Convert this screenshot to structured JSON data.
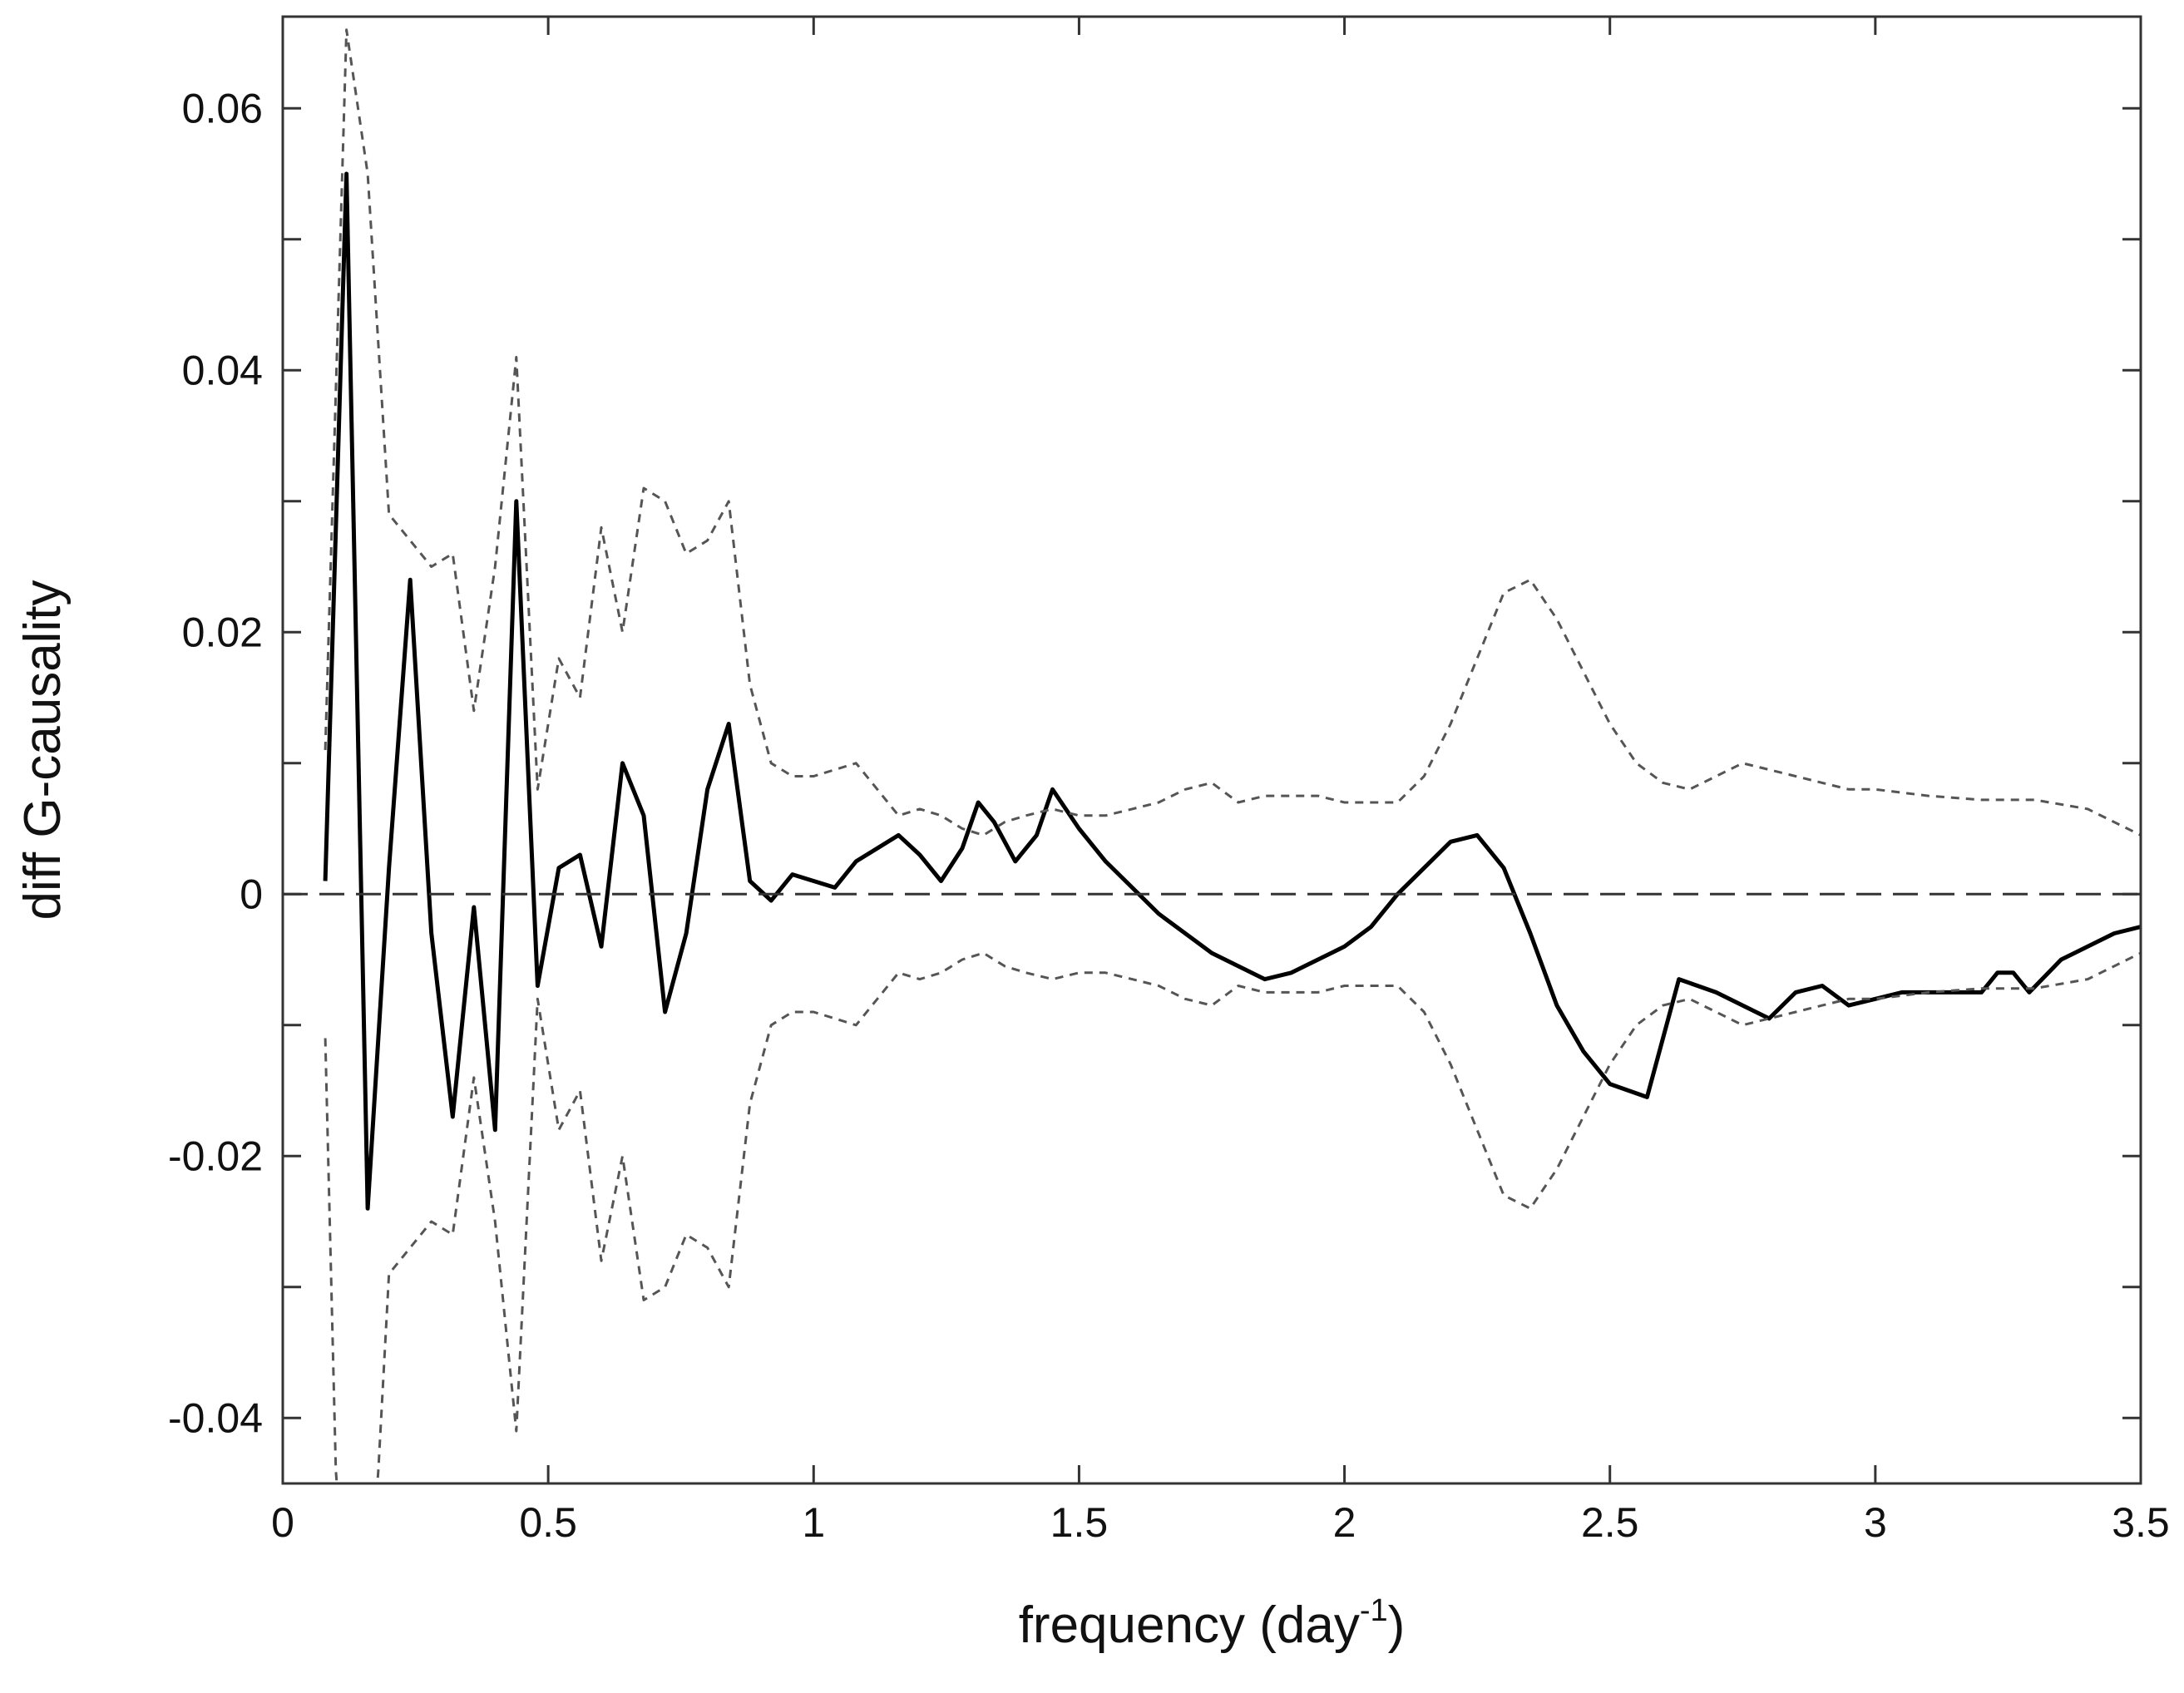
{
  "chart_data": {
    "type": "line",
    "xlabel_main": "frequency (day",
    "xlabel_sup": "-1",
    "xlabel_end": ")",
    "ylabel": "diff G-causality",
    "xlim": [
      0,
      3.5
    ],
    "ylim": [
      -0.045,
      0.067
    ],
    "xticks": [
      0,
      0.5,
      1,
      1.5,
      2,
      2.5,
      3,
      3.5
    ],
    "xtick_labels": [
      "0",
      "0.5",
      "1",
      "1.5",
      "2",
      "2.5",
      "3",
      "3.5"
    ],
    "yticks": [
      -0.04,
      -0.02,
      0,
      0.02,
      0.04,
      0.06
    ],
    "ytick_labels": [
      "-0.04",
      "-0.02",
      "0",
      "0.02",
      "0.04",
      "0.06"
    ],
    "grid": false,
    "zero_line": true,
    "colors": {
      "main": "#000000",
      "bounds": "#555555",
      "zero": "#333333",
      "axes": "#333333"
    },
    "series": [
      {
        "style": "solid",
        "x": [
          0.08,
          0.12,
          0.16,
          0.2,
          0.24,
          0.28,
          0.32,
          0.36,
          0.4,
          0.44,
          0.48,
          0.52,
          0.56,
          0.6,
          0.64,
          0.68,
          0.72,
          0.76,
          0.8,
          0.84,
          0.88,
          0.92,
          0.96,
          1.0,
          1.04,
          1.08,
          1.12,
          1.16,
          1.2,
          1.24,
          1.28,
          1.31,
          1.34,
          1.38,
          1.42,
          1.45,
          1.5,
          1.55,
          1.6,
          1.65,
          1.7,
          1.75,
          1.8,
          1.85,
          1.9,
          1.95,
          2.0,
          2.05,
          2.1,
          2.15,
          2.2,
          2.25,
          2.3,
          2.35,
          2.4,
          2.45,
          2.5,
          2.57,
          2.63,
          2.7,
          2.75,
          2.8,
          2.85,
          2.9,
          2.95,
          3.0,
          3.05,
          3.1,
          3.15,
          3.2,
          3.23,
          3.26,
          3.29,
          3.35,
          3.4,
          3.45,
          3.5
        ],
        "values": [
          0.001,
          0.055,
          -0.024,
          0.002,
          0.024,
          -0.003,
          -0.017,
          -0.001,
          -0.018,
          0.03,
          -0.007,
          0.002,
          0.003,
          -0.004,
          0.01,
          0.006,
          -0.009,
          -0.003,
          0.008,
          0.013,
          0.001,
          -0.0005,
          0.0015,
          0.001,
          0.0005,
          0.0025,
          0.0035,
          0.0045,
          0.003,
          0.001,
          0.0035,
          0.007,
          0.0055,
          0.0025,
          0.0045,
          0.008,
          0.005,
          0.0025,
          0.0005,
          -0.0015,
          -0.003,
          -0.0045,
          -0.0055,
          -0.0065,
          -0.006,
          -0.005,
          -0.004,
          -0.0025,
          0.0,
          0.002,
          0.004,
          0.0045,
          0.002,
          -0.003,
          -0.0085,
          -0.012,
          -0.0145,
          -0.0155,
          -0.0065,
          -0.0075,
          -0.0085,
          -0.0095,
          -0.0075,
          -0.007,
          -0.0085,
          -0.008,
          -0.0075,
          -0.0075,
          -0.0075,
          -0.0075,
          -0.006,
          -0.006,
          -0.0075,
          -0.005,
          -0.004,
          -0.003,
          -0.0025
        ]
      },
      {
        "style": "dashed",
        "x": [
          0.08,
          0.12,
          0.16,
          0.2,
          0.24,
          0.28,
          0.32,
          0.36,
          0.4,
          0.44,
          0.48,
          0.52,
          0.56,
          0.6,
          0.64,
          0.68,
          0.72,
          0.76,
          0.8,
          0.84,
          0.88,
          0.92,
          0.96,
          1.0,
          1.04,
          1.08,
          1.12,
          1.16,
          1.2,
          1.24,
          1.28,
          1.32,
          1.36,
          1.4,
          1.45,
          1.5,
          1.55,
          1.6,
          1.65,
          1.7,
          1.75,
          1.8,
          1.85,
          1.9,
          1.95,
          2.0,
          2.05,
          2.1,
          2.15,
          2.2,
          2.25,
          2.3,
          2.35,
          2.4,
          2.45,
          2.5,
          2.55,
          2.6,
          2.65,
          2.7,
          2.75,
          2.8,
          2.85,
          2.9,
          2.95,
          3.0,
          3.1,
          3.2,
          3.3,
          3.4,
          3.5
        ],
        "values": [
          0.011,
          0.066,
          0.055,
          0.029,
          0.027,
          0.025,
          0.026,
          0.014,
          0.025,
          0.041,
          0.008,
          0.018,
          0.015,
          0.028,
          0.02,
          0.031,
          0.03,
          0.026,
          0.027,
          0.03,
          0.016,
          0.01,
          0.009,
          0.009,
          0.0095,
          0.01,
          0.008,
          0.006,
          0.0065,
          0.006,
          0.005,
          0.0045,
          0.0055,
          0.006,
          0.0065,
          0.006,
          0.006,
          0.0065,
          0.007,
          0.008,
          0.0085,
          0.007,
          0.0075,
          0.0075,
          0.0075,
          0.007,
          0.007,
          0.007,
          0.009,
          0.013,
          0.018,
          0.023,
          0.024,
          0.021,
          0.017,
          0.013,
          0.01,
          0.0085,
          0.008,
          0.009,
          0.01,
          0.0095,
          0.009,
          0.0085,
          0.008,
          0.008,
          0.0075,
          0.0072,
          0.0072,
          0.0065,
          0.0045
        ]
      },
      {
        "style": "dashed",
        "x": [
          0.08,
          0.1,
          0.14,
          0.18,
          0.2,
          0.24,
          0.28,
          0.32,
          0.36,
          0.4,
          0.44,
          0.48,
          0.52,
          0.56,
          0.6,
          0.64,
          0.68,
          0.72,
          0.76,
          0.8,
          0.84,
          0.88,
          0.92,
          0.96,
          1.0,
          1.04,
          1.08,
          1.12,
          1.16,
          1.2,
          1.24,
          1.28,
          1.32,
          1.36,
          1.4,
          1.45,
          1.5,
          1.55,
          1.6,
          1.65,
          1.7,
          1.75,
          1.8,
          1.85,
          1.9,
          1.95,
          2.0,
          2.05,
          2.1,
          2.15,
          2.2,
          2.25,
          2.3,
          2.35,
          2.4,
          2.45,
          2.5,
          2.55,
          2.6,
          2.65,
          2.7,
          2.75,
          2.8,
          2.85,
          2.9,
          2.95,
          3.0,
          3.1,
          3.2,
          3.3,
          3.4,
          3.5
        ],
        "values": [
          -0.011,
          -0.044,
          -0.066,
          -0.044,
          -0.029,
          -0.027,
          -0.025,
          -0.026,
          -0.014,
          -0.025,
          -0.041,
          -0.008,
          -0.018,
          -0.015,
          -0.028,
          -0.02,
          -0.031,
          -0.03,
          -0.026,
          -0.027,
          -0.03,
          -0.016,
          -0.01,
          -0.009,
          -0.009,
          -0.0095,
          -0.01,
          -0.008,
          -0.006,
          -0.0065,
          -0.006,
          -0.005,
          -0.0045,
          -0.0055,
          -0.006,
          -0.0065,
          -0.006,
          -0.006,
          -0.0065,
          -0.007,
          -0.008,
          -0.0085,
          -0.007,
          -0.0075,
          -0.0075,
          -0.0075,
          -0.007,
          -0.007,
          -0.007,
          -0.009,
          -0.013,
          -0.018,
          -0.023,
          -0.024,
          -0.021,
          -0.017,
          -0.013,
          -0.01,
          -0.0085,
          -0.008,
          -0.009,
          -0.01,
          -0.0095,
          -0.009,
          -0.0085,
          -0.008,
          -0.008,
          -0.0075,
          -0.0072,
          -0.0072,
          -0.0065,
          -0.0045
        ]
      }
    ]
  }
}
